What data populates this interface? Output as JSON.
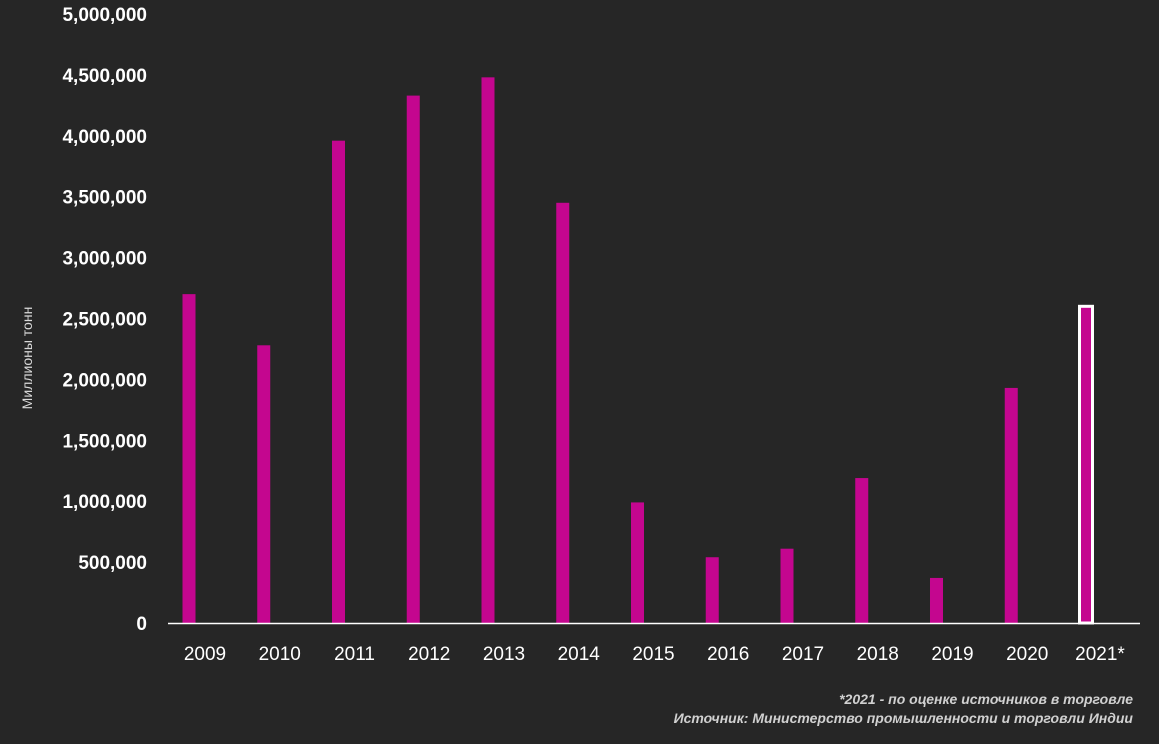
{
  "chart_data": {
    "type": "bar",
    "categories": [
      "2009",
      "2010",
      "2011",
      "2012",
      "2013",
      "2014",
      "2015",
      "2016",
      "2017",
      "2018",
      "2019",
      "2020",
      "2021*"
    ],
    "values": [
      2700000,
      2280000,
      3960000,
      4330000,
      4480000,
      3450000,
      990000,
      540000,
      610000,
      1190000,
      370000,
      1930000,
      2600000
    ],
    "estimated": [
      false,
      false,
      false,
      false,
      false,
      false,
      false,
      false,
      false,
      false,
      false,
      false,
      true
    ],
    "ylabel": "Миллионы тонн",
    "xlabel": "",
    "ylim": [
      0,
      5000000
    ],
    "yticks": [
      0,
      500000,
      1000000,
      1500000,
      2000000,
      2500000,
      3000000,
      3500000,
      4000000,
      4500000,
      5000000
    ],
    "ytick_labels": [
      "0",
      "500,000",
      "1,000,000",
      "1,500,000",
      "2,000,000",
      "2,500,000",
      "3,000,000",
      "3,500,000",
      "4,000,000",
      "4,500,000",
      "5,000,000"
    ],
    "grid": false,
    "legend": "none"
  },
  "notes": {
    "estimate_note": "*2021 - по оценке источников в торговле",
    "source": "Источник: Министерство промышленности и торговли Индии"
  },
  "colors": {
    "background": "#262626",
    "bar": "#c4068f",
    "estimated_bar_fill": "#c4068f",
    "estimated_bar_outline": "#ffffff",
    "text": "#ffffff",
    "axis_line": "#ffffff"
  }
}
